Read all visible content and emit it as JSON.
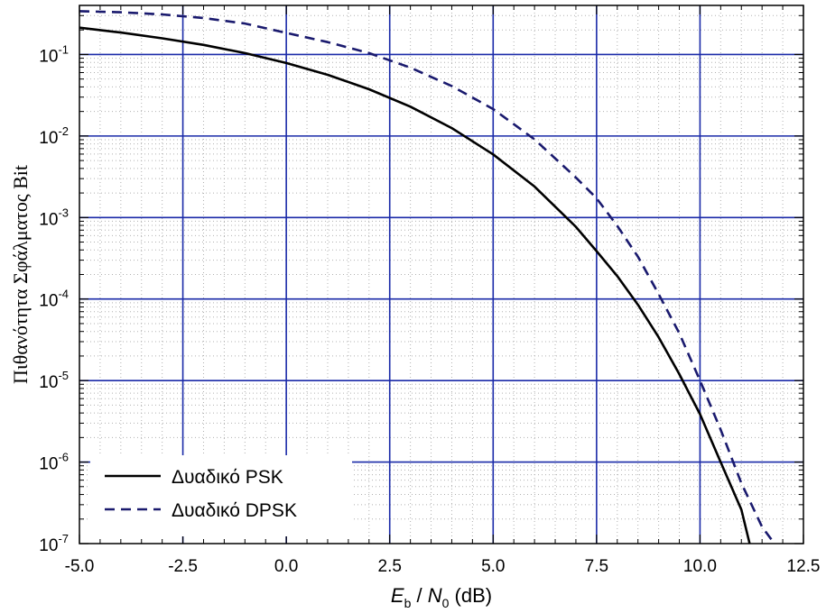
{
  "chart_data": {
    "type": "line",
    "xlabel": {
      "main": "E",
      "main_sub": "b",
      "sep": " / ",
      "den": "N",
      "den_sub": "0",
      "unit": " (dB)"
    },
    "ylabel": "Πιθανότητα Σφάλματος Bit",
    "xlim": [
      -5,
      12.5
    ],
    "ylim": [
      1e-07,
      0.4
    ],
    "yscale": "log",
    "x_ticks": [
      -5,
      -2.5,
      0,
      2.5,
      5,
      7.5,
      10,
      12.5
    ],
    "x_tick_labels": [
      "-5.0",
      "-2.5",
      "0.0",
      "2.5",
      "5.0",
      "7.5",
      "10.0",
      "12.5"
    ],
    "y_ticks": [
      {
        "value": 1e-07,
        "base": "10",
        "exp": "-7"
      },
      {
        "value": 1e-06,
        "base": "10",
        "exp": "-6"
      },
      {
        "value": 1e-05,
        "base": "10",
        "exp": "-5"
      },
      {
        "value": 0.0001,
        "base": "10",
        "exp": "-4"
      },
      {
        "value": 0.001,
        "base": "10",
        "exp": "-3"
      },
      {
        "value": 0.01,
        "base": "10",
        "exp": "-2"
      },
      {
        "value": 0.1,
        "base": "10",
        "exp": "-1"
      }
    ],
    "grid": {
      "major": true,
      "minor": true,
      "major_color": "#1a2aa8",
      "minor_color": "#b0b0b0"
    },
    "legend_position": "bottom-left",
    "series": [
      {
        "name": "Δυαδικό PSK",
        "style": "solid",
        "color": "#000000",
        "x": [
          -5,
          -4,
          -3,
          -2,
          -1,
          0,
          1,
          2,
          3,
          4,
          5,
          6,
          7,
          7.5,
          8,
          8.5,
          9,
          9.5,
          10,
          10.5,
          11,
          11.2
        ],
        "y": [
          0.213,
          0.186,
          0.158,
          0.131,
          0.104,
          0.0786,
          0.0563,
          0.0375,
          0.0229,
          0.0125,
          0.00595,
          0.0024,
          0.00077,
          0.000387,
          0.000191,
          8.5e-05,
          3.4e-05,
          1.2e-05,
          3.87e-06,
          1e-06,
          2.6e-07,
          1e-07
        ]
      },
      {
        "name": "Δυαδικό DPSK",
        "style": "dashed",
        "color": "#1a1a6e",
        "x": [
          -5,
          -4,
          -3,
          -2,
          -1,
          0,
          1,
          2,
          3,
          4,
          5,
          6,
          7,
          7.5,
          8,
          8.5,
          9,
          9.5,
          10,
          10.5,
          11,
          11.5,
          11.8
        ],
        "y": [
          0.34,
          0.33,
          0.31,
          0.28,
          0.24,
          0.184,
          0.142,
          0.104,
          0.069,
          0.041,
          0.0214,
          0.0091,
          0.0031,
          0.00172,
          0.00079,
          0.00033,
          0.000115,
          3.8e-05,
          1e-05,
          2.5e-06,
          5.5e-07,
          1.6e-07,
          1e-07
        ]
      }
    ]
  }
}
